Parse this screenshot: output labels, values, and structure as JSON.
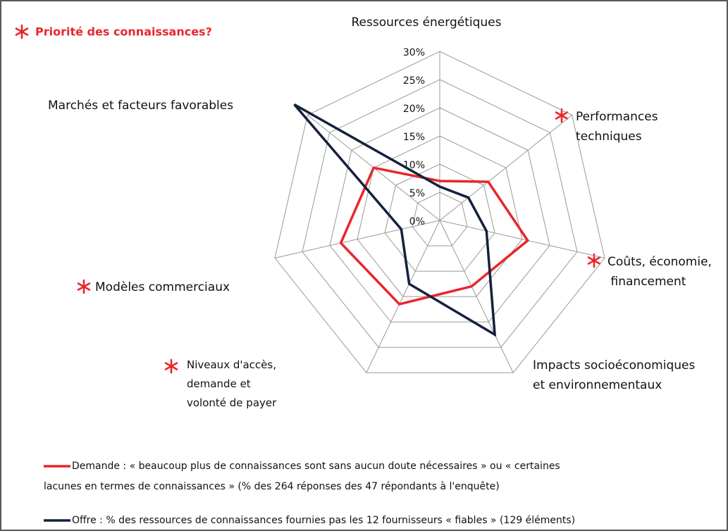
{
  "chart_data": {
    "type": "radar",
    "title": "Priorité des connaissances?",
    "categories": [
      "Ressources énergétiques",
      "Performances\ntechniques",
      "Coûts, économie,\nfinancement",
      "Impacts socioéconomiques\net environnementaux",
      "Niveaux d'accès,\ndemande et\nvolonté de payer",
      "Modèles commerciaux",
      "Marchés et facteurs favorables"
    ],
    "series": [
      {
        "name": "Demande : « beaucoup plus de connaissances sont sans aucun doute nécessaires » ou « certaines\nlacunes en termes de connaissances » (% des 264 réponses des 47 répondants à l'enquête)",
        "color": "#e8262b",
        "values": [
          7,
          11,
          16,
          13,
          16.5,
          18,
          15
        ]
      },
      {
        "name": "Offre : % des ressources de connaissances fournies pas les 12 fournisseurs « fiables » (129 éléments)",
        "color": "#14213d",
        "values": [
          6,
          6.5,
          8.5,
          22.5,
          12.5,
          7,
          33
        ]
      }
    ],
    "ylim": [
      0,
      30
    ],
    "yticks": [
      {
        "value": 0,
        "label": "0%"
      },
      {
        "value": 5,
        "label": "5%"
      },
      {
        "value": 10,
        "label": "10%"
      },
      {
        "value": 15,
        "label": "15%"
      },
      {
        "value": 20,
        "label": "20%"
      },
      {
        "value": 25,
        "label": "25%"
      },
      {
        "value": 30,
        "label": "30%"
      }
    ],
    "grid": true,
    "legend": "bottom"
  }
}
